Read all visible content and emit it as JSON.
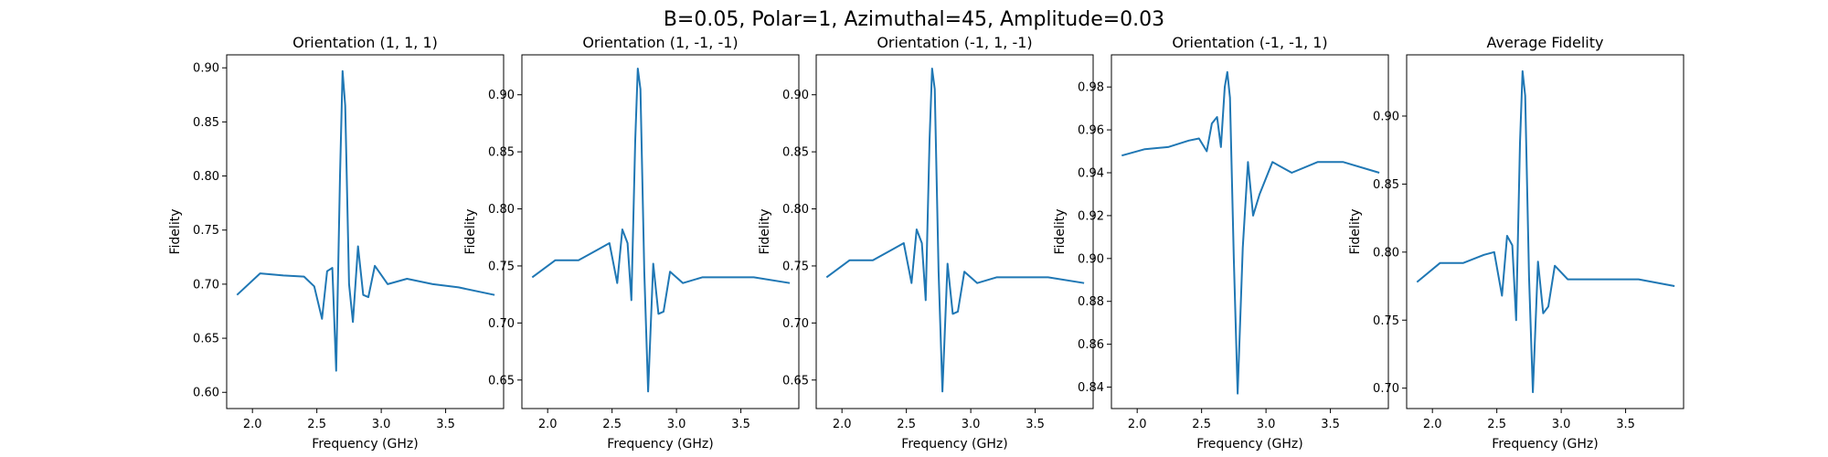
{
  "figure": {
    "suptitle": "B=0.05, Polar=1, Azimuthal=45, Amplitude=0.03"
  },
  "chart_data": [
    {
      "type": "line",
      "title": "Orientation (1, 1, 1)",
      "xlabel": "Frequency (GHz)",
      "ylabel": "Fidelity",
      "xlim": [
        1.8,
        3.95
      ],
      "ylim": [
        0.585,
        0.912
      ],
      "xticks": [
        2.0,
        2.5,
        3.0,
        3.5
      ],
      "xtick_labels": [
        "2.0",
        "2.5",
        "3.0",
        "3.5"
      ],
      "yticks": [
        0.6,
        0.65,
        0.7,
        0.75,
        0.8,
        0.85,
        0.9
      ],
      "ytick_labels": [
        "0.60",
        "0.65",
        "0.70",
        "0.75",
        "0.80",
        "0.85",
        "0.90"
      ],
      "x": [
        1.88,
        2.06,
        2.24,
        2.4,
        2.48,
        2.54,
        2.58,
        2.62,
        2.65,
        2.68,
        2.7,
        2.72,
        2.75,
        2.78,
        2.82,
        2.86,
        2.9,
        2.95,
        3.05,
        3.2,
        3.4,
        3.6,
        3.88
      ],
      "y": [
        0.69,
        0.71,
        0.708,
        0.707,
        0.698,
        0.668,
        0.712,
        0.715,
        0.62,
        0.8,
        0.897,
        0.865,
        0.7,
        0.665,
        0.735,
        0.69,
        0.688,
        0.717,
        0.7,
        0.705,
        0.7,
        0.697,
        0.69
      ]
    },
    {
      "type": "line",
      "title": "Orientation (1, -1, -1)",
      "xlabel": "Frequency (GHz)",
      "ylabel": "Fidelity",
      "xlim": [
        1.8,
        3.95
      ],
      "ylim": [
        0.625,
        0.935
      ],
      "xticks": [
        2.0,
        2.5,
        3.0,
        3.5
      ],
      "xtick_labels": [
        "2.0",
        "2.5",
        "3.0",
        "3.5"
      ],
      "yticks": [
        0.65,
        0.7,
        0.75,
        0.8,
        0.85,
        0.9
      ],
      "ytick_labels": [
        "0.65",
        "0.70",
        "0.75",
        "0.80",
        "0.85",
        "0.90"
      ],
      "x": [
        1.88,
        2.06,
        2.24,
        2.4,
        2.48,
        2.54,
        2.58,
        2.62,
        2.65,
        2.68,
        2.7,
        2.72,
        2.75,
        2.78,
        2.82,
        2.86,
        2.9,
        2.95,
        3.05,
        3.2,
        3.4,
        3.6,
        3.88
      ],
      "y": [
        0.74,
        0.755,
        0.755,
        0.765,
        0.77,
        0.735,
        0.782,
        0.77,
        0.72,
        0.86,
        0.923,
        0.905,
        0.745,
        0.64,
        0.752,
        0.708,
        0.71,
        0.745,
        0.735,
        0.74,
        0.74,
        0.74,
        0.735
      ]
    },
    {
      "type": "line",
      "title": "Orientation (-1, 1, -1)",
      "xlabel": "Frequency (GHz)",
      "ylabel": "Fidelity",
      "xlim": [
        1.8,
        3.95
      ],
      "ylim": [
        0.625,
        0.935
      ],
      "xticks": [
        2.0,
        2.5,
        3.0,
        3.5
      ],
      "xtick_labels": [
        "2.0",
        "2.5",
        "3.0",
        "3.5"
      ],
      "yticks": [
        0.65,
        0.7,
        0.75,
        0.8,
        0.85,
        0.9
      ],
      "ytick_labels": [
        "0.65",
        "0.70",
        "0.75",
        "0.80",
        "0.85",
        "0.90"
      ],
      "x": [
        1.88,
        2.06,
        2.24,
        2.4,
        2.48,
        2.54,
        2.58,
        2.62,
        2.65,
        2.68,
        2.7,
        2.72,
        2.75,
        2.78,
        2.82,
        2.86,
        2.9,
        2.95,
        3.05,
        3.2,
        3.4,
        3.6,
        3.88
      ],
      "y": [
        0.74,
        0.755,
        0.755,
        0.765,
        0.77,
        0.735,
        0.782,
        0.77,
        0.72,
        0.86,
        0.923,
        0.905,
        0.745,
        0.64,
        0.752,
        0.708,
        0.71,
        0.745,
        0.735,
        0.74,
        0.74,
        0.74,
        0.735
      ]
    },
    {
      "type": "line",
      "title": "Orientation (-1, -1, 1)",
      "xlabel": "Frequency (GHz)",
      "ylabel": "Fidelity",
      "xlim": [
        1.8,
        3.95
      ],
      "ylim": [
        0.83,
        0.995
      ],
      "xticks": [
        2.0,
        2.5,
        3.0,
        3.5
      ],
      "xtick_labels": [
        "2.0",
        "2.5",
        "3.0",
        "3.5"
      ],
      "yticks": [
        0.84,
        0.86,
        0.88,
        0.9,
        0.92,
        0.94,
        0.96,
        0.98
      ],
      "ytick_labels": [
        "0.84",
        "0.86",
        "0.88",
        "0.90",
        "0.92",
        "0.94",
        "0.96",
        "0.98"
      ],
      "x": [
        1.88,
        2.06,
        2.24,
        2.4,
        2.48,
        2.54,
        2.58,
        2.62,
        2.65,
        2.68,
        2.7,
        2.72,
        2.75,
        2.78,
        2.82,
        2.86,
        2.9,
        2.95,
        3.05,
        3.2,
        3.4,
        3.6,
        3.88
      ],
      "y": [
        0.948,
        0.951,
        0.952,
        0.955,
        0.956,
        0.95,
        0.963,
        0.966,
        0.952,
        0.98,
        0.987,
        0.975,
        0.9,
        0.837,
        0.905,
        0.945,
        0.92,
        0.93,
        0.945,
        0.94,
        0.945,
        0.945,
        0.94
      ]
    },
    {
      "type": "line",
      "title": "Average Fidelity",
      "xlabel": "Frequency (GHz)",
      "ylabel": "Fidelity",
      "xlim": [
        1.8,
        3.95
      ],
      "ylim": [
        0.685,
        0.945
      ],
      "xticks": [
        2.0,
        2.5,
        3.0,
        3.5
      ],
      "xtick_labels": [
        "2.0",
        "2.5",
        "3.0",
        "3.5"
      ],
      "yticks": [
        0.7,
        0.75,
        0.8,
        0.85,
        0.9
      ],
      "ytick_labels": [
        "0.70",
        "0.75",
        "0.80",
        "0.85",
        "0.90"
      ],
      "x": [
        1.88,
        2.06,
        2.24,
        2.4,
        2.48,
        2.54,
        2.58,
        2.62,
        2.65,
        2.68,
        2.7,
        2.72,
        2.75,
        2.78,
        2.82,
        2.86,
        2.9,
        2.95,
        3.05,
        3.2,
        3.4,
        3.6,
        3.88
      ],
      "y": [
        0.778,
        0.792,
        0.792,
        0.798,
        0.8,
        0.768,
        0.812,
        0.805,
        0.75,
        0.88,
        0.933,
        0.915,
        0.782,
        0.697,
        0.793,
        0.755,
        0.76,
        0.79,
        0.78,
        0.78,
        0.78,
        0.78,
        0.775
      ]
    }
  ]
}
